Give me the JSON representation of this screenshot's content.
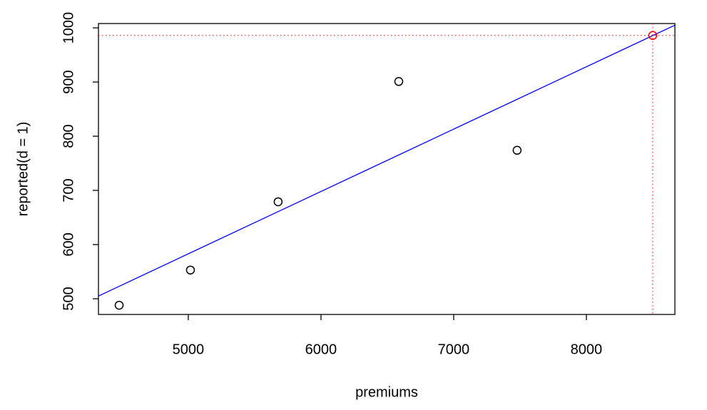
{
  "chart_data": {
    "type": "scatter",
    "xlabel": "premiums",
    "ylabel": "reported(d = 1)",
    "x": [
      4479,
      5016,
      5677,
      6586,
      7478
    ],
    "values": [
      488,
      553,
      679,
      901,
      774
    ],
    "color": "#000000",
    "regression": {
      "intercept": 7.4,
      "slope": 0.1151,
      "color": "#0000ff"
    },
    "prediction": {
      "x": 8500,
      "y": 986,
      "color": "#ff0000"
    },
    "xlim": [
      4323,
      8667
    ],
    "ylim": [
      471,
      1008
    ],
    "xticks": [
      5000,
      6000,
      7000,
      8000
    ],
    "yticks": [
      500,
      600,
      700,
      800,
      900,
      1000
    ]
  }
}
